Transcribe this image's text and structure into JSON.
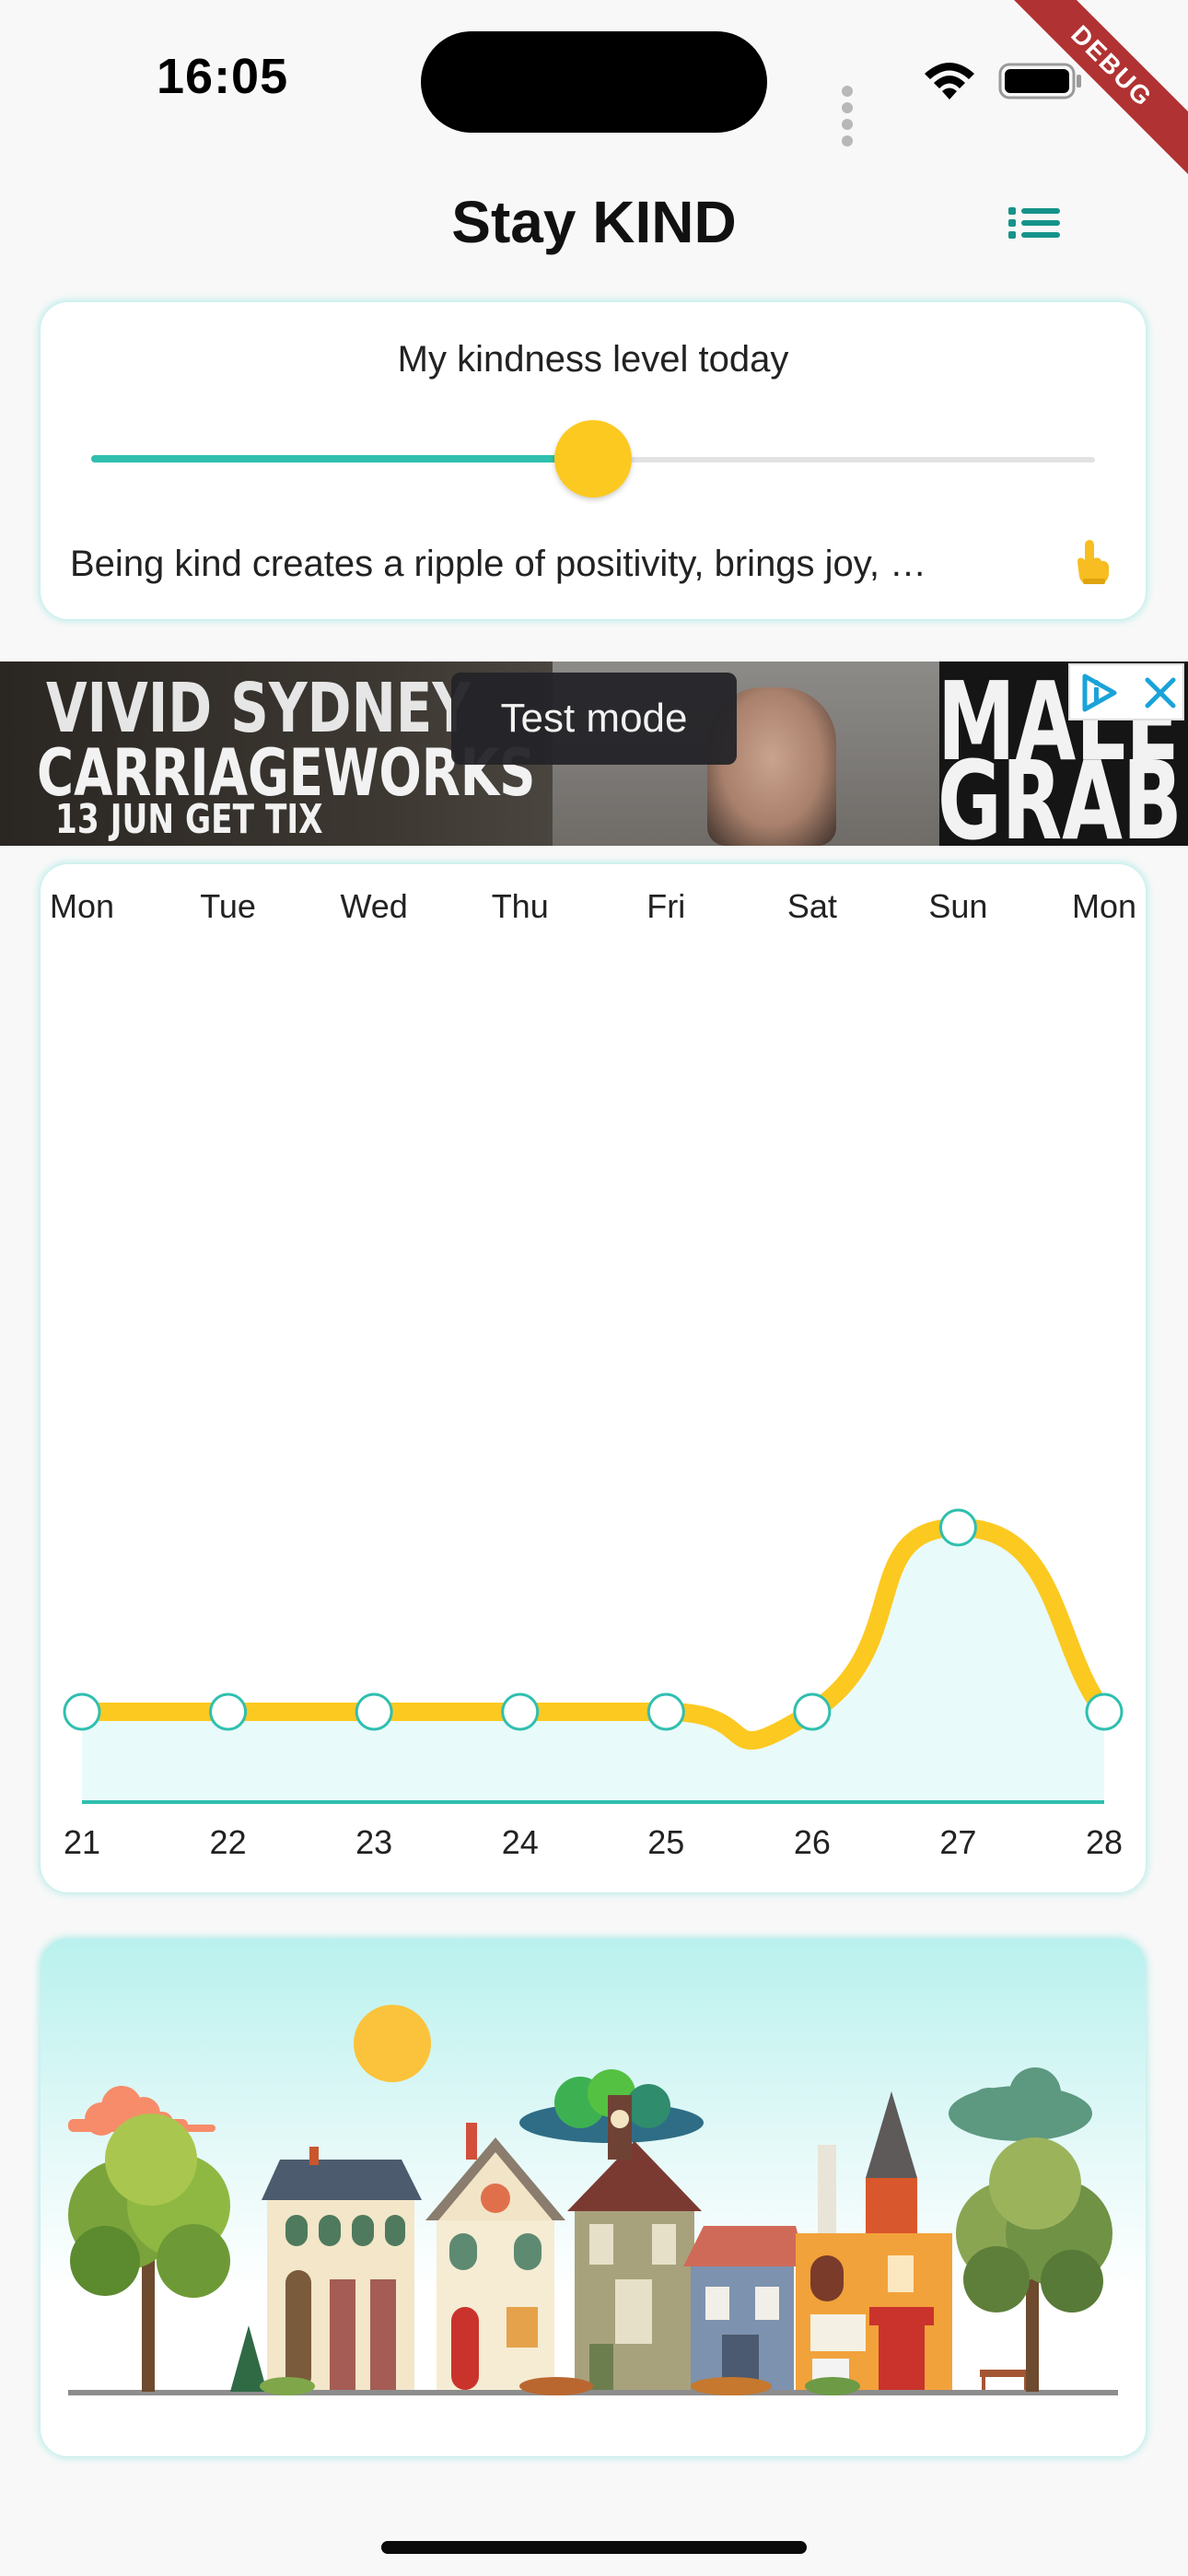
{
  "status_bar": {
    "time": "16:05",
    "debug_label": "DEBUG",
    "icons": [
      "signal-dots-icon",
      "wifi-icon",
      "battery-icon"
    ]
  },
  "app_bar": {
    "title": "Stay KIND",
    "menu_icon": "list-icon"
  },
  "kindness": {
    "title": "My kindness level today",
    "level": 0.5,
    "message": "Being kind creates a ripple of positivity, brings joy, …",
    "hand_icon": "pointing-hand-icon"
  },
  "ad": {
    "line1": "VIVID SYDNEY",
    "line2": "CARRIAGEWORKS",
    "line3": "13 JUN GET TIX",
    "right_line1": "MALE",
    "right_line2": "GRAB",
    "test_mode": "Test mode",
    "icons": [
      "ad-choices-icon",
      "close-icon"
    ]
  },
  "chart_data": {
    "type": "area",
    "top_labels": [
      "Mon",
      "Tue",
      "Wed",
      "Thu",
      "Fri",
      "Sat",
      "Sun",
      "Mon"
    ],
    "categories": [
      "21",
      "22",
      "23",
      "24",
      "25",
      "26",
      "27",
      "28"
    ],
    "values": [
      0,
      0,
      0,
      0,
      0,
      0,
      1,
      0
    ],
    "ylim": [
      -0.5,
      4
    ],
    "grid": false,
    "colors": {
      "line": "#fcc921",
      "fill": "#e8fafa",
      "baseline": "#2fbfaf",
      "marker_stroke": "#2fbfaf",
      "marker_fill": "#ffffff"
    }
  },
  "colors": {
    "accent": "#2fbfaf",
    "thumb": "#fcc921",
    "card_glow": "#40d6cd",
    "debug": "#b13232"
  }
}
